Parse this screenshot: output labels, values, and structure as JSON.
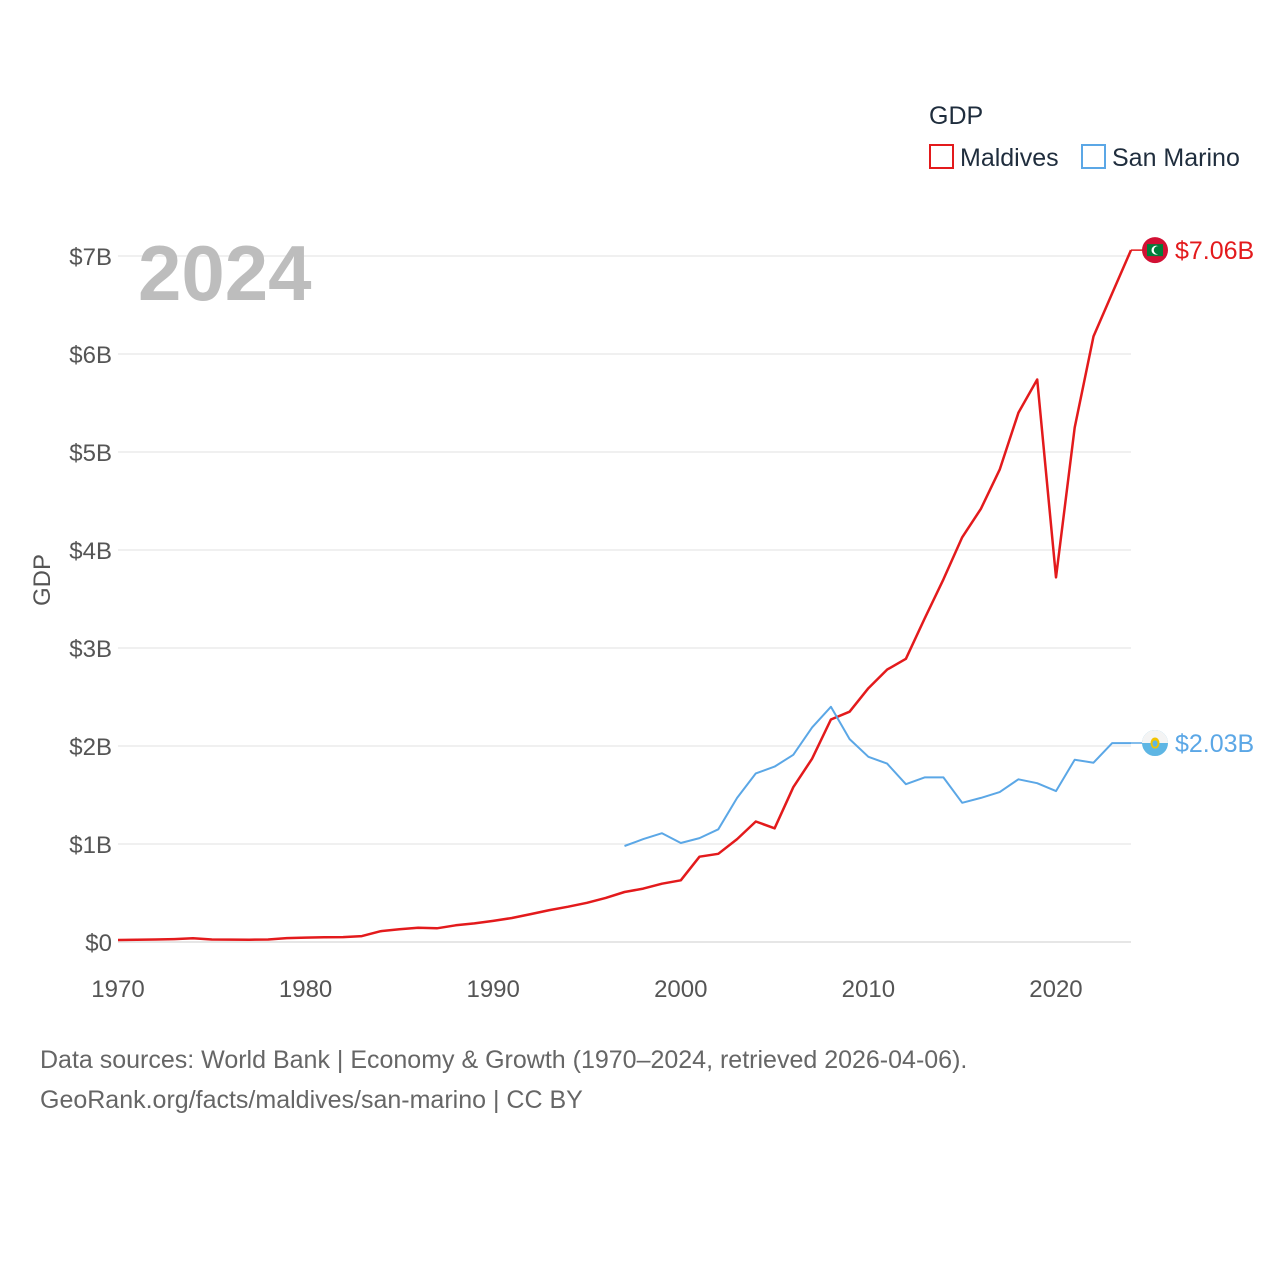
{
  "chart_data": {
    "type": "line",
    "year_label": "2024",
    "ylabel": "GDP",
    "legend_title": "GDP",
    "y_ticks": [
      "$0",
      "$1B",
      "$2B",
      "$3B",
      "$4B",
      "$5B",
      "$6B",
      "$7B"
    ],
    "y_tick_values": [
      0,
      1,
      2,
      3,
      4,
      5,
      6,
      7
    ],
    "x_ticks": [
      "1970",
      "1980",
      "1990",
      "2000",
      "2010",
      "2020"
    ],
    "x_tick_values": [
      1970,
      1980,
      1990,
      2000,
      2010,
      2020
    ],
    "xlim": [
      1970,
      2024
    ],
    "ylim": [
      0,
      7
    ],
    "units": "billions USD",
    "series": [
      {
        "name": "Maldives",
        "color": "#e31a1c",
        "end_label": "$7.06B",
        "flag": "maldives-flag-icon",
        "x": [
          1970,
          1971,
          1972,
          1973,
          1974,
          1975,
          1976,
          1977,
          1978,
          1979,
          1980,
          1981,
          1982,
          1983,
          1984,
          1985,
          1986,
          1987,
          1988,
          1989,
          1990,
          1991,
          1992,
          1993,
          1994,
          1995,
          1996,
          1997,
          1998,
          1999,
          2000,
          2001,
          2002,
          2003,
          2004,
          2005,
          2006,
          2007,
          2008,
          2009,
          2010,
          2011,
          2012,
          2013,
          2014,
          2015,
          2016,
          2017,
          2018,
          2019,
          2020,
          2021,
          2022,
          2023,
          2024
        ],
        "values": [
          0.02,
          0.022,
          0.025,
          0.03,
          0.038,
          0.025,
          0.024,
          0.023,
          0.026,
          0.04,
          0.045,
          0.048,
          0.05,
          0.06,
          0.11,
          0.13,
          0.145,
          0.14,
          0.17,
          0.19,
          0.215,
          0.245,
          0.285,
          0.325,
          0.36,
          0.4,
          0.45,
          0.51,
          0.545,
          0.595,
          0.63,
          0.87,
          0.9,
          1.05,
          1.23,
          1.16,
          1.58,
          1.87,
          2.27,
          2.35,
          2.59,
          2.78,
          2.89,
          3.3,
          3.7,
          4.13,
          4.42,
          4.82,
          5.4,
          5.74,
          3.72,
          5.25,
          6.18,
          6.62,
          7.06
        ]
      },
      {
        "name": "San Marino",
        "color": "#5ba7e6",
        "end_label": "$2.03B",
        "flag": "san-marino-flag-icon",
        "x": [
          1997,
          1998,
          1999,
          2000,
          2001,
          2002,
          2003,
          2004,
          2005,
          2006,
          2007,
          2008,
          2009,
          2010,
          2011,
          2012,
          2013,
          2014,
          2015,
          2016,
          2017,
          2018,
          2019,
          2020,
          2021,
          2022,
          2023,
          2024
        ],
        "values": [
          0.98,
          1.05,
          1.11,
          1.01,
          1.06,
          1.15,
          1.47,
          1.72,
          1.79,
          1.91,
          2.19,
          2.4,
          2.07,
          1.89,
          1.82,
          1.61,
          1.68,
          1.68,
          1.42,
          1.47,
          1.53,
          1.66,
          1.62,
          1.54,
          1.86,
          1.83,
          2.03,
          2.03
        ]
      }
    ]
  },
  "footer": {
    "line1": "Data sources: World Bank | Economy & Growth (1970–2024, retrieved 2026-04-06).",
    "line2": "GeoRank.org/facts/maldives/san-marino | CC BY"
  }
}
